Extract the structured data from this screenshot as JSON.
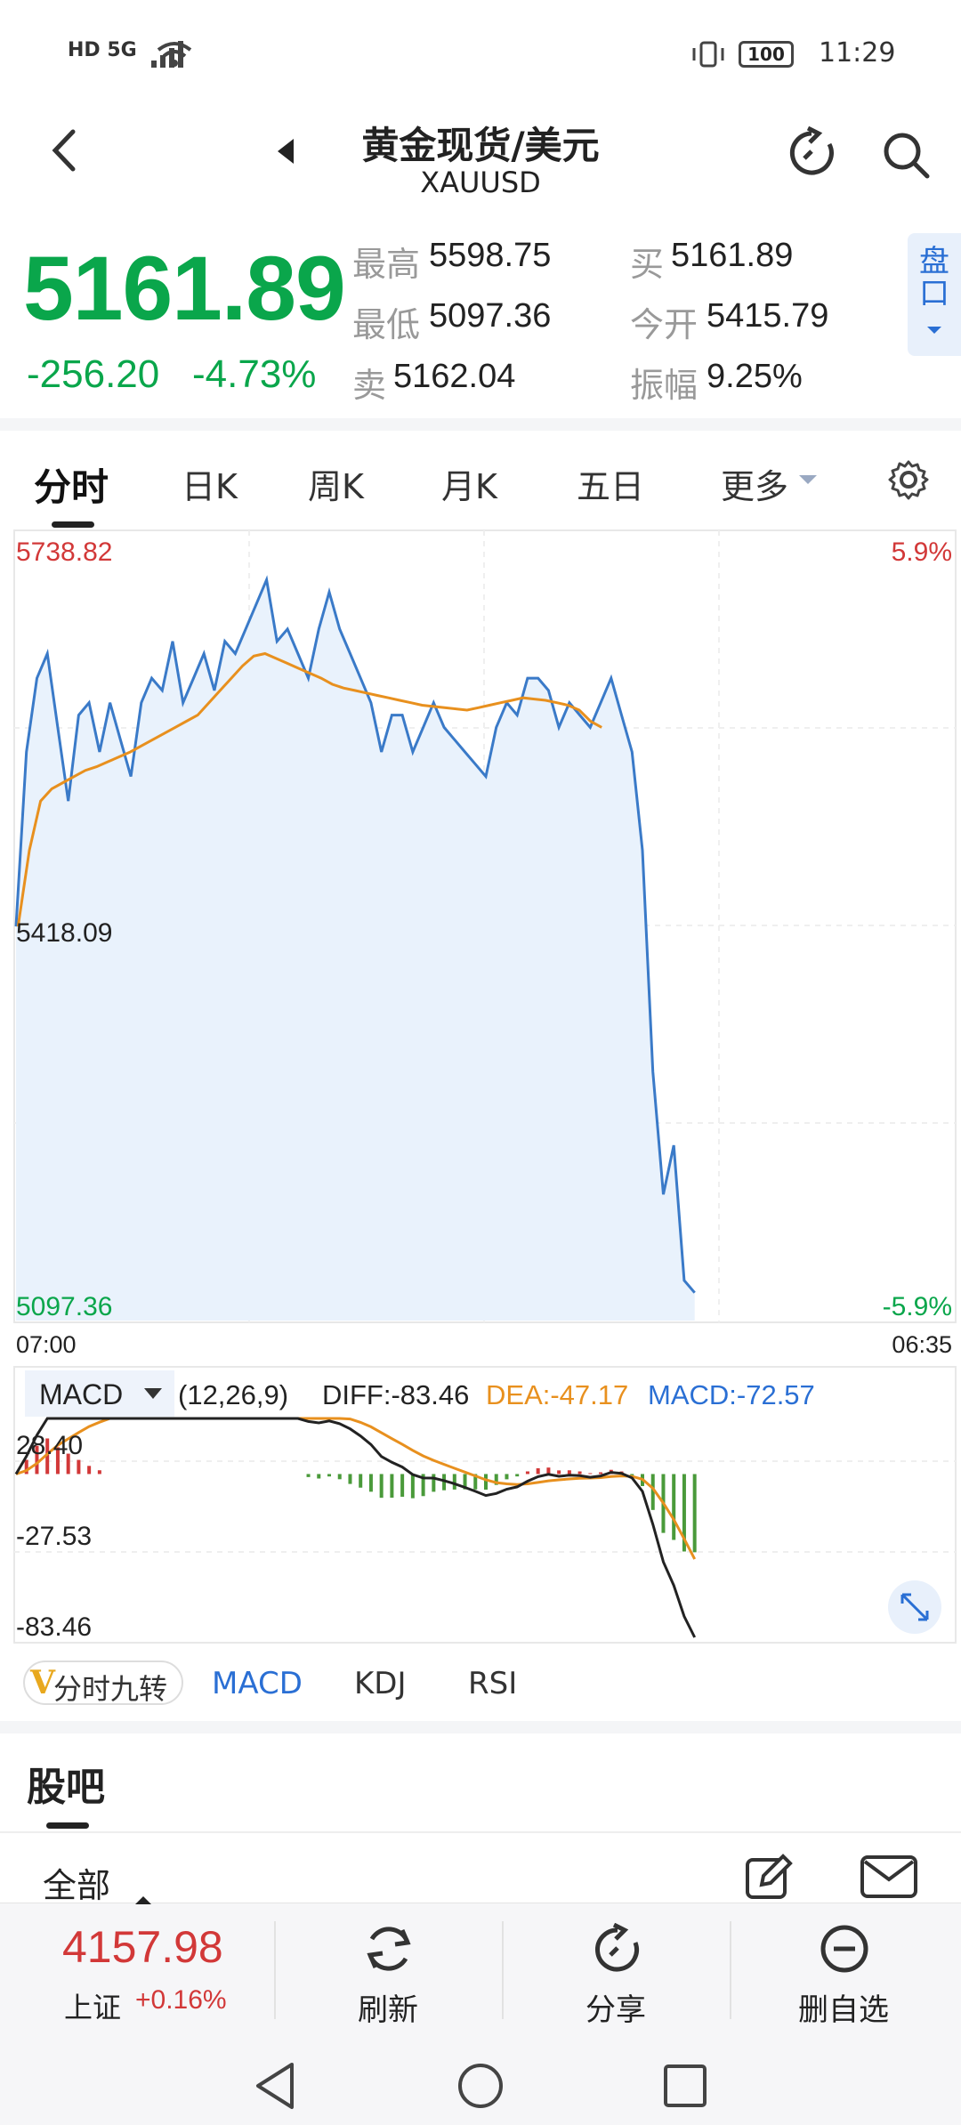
{
  "status_bar": {
    "left": "HD 5G",
    "battery": "100",
    "time": "11:29"
  },
  "header": {
    "title": "黄金现货/美元",
    "subtitle": "XAUUSD"
  },
  "quote": {
    "price": "5161.89",
    "change": "-256.20",
    "change_pct": "-4.73%",
    "high_label": "最高",
    "high": "5598.75",
    "low_label": "最低",
    "low": "5097.36",
    "sell_label": "卖",
    "sell": "5162.04",
    "buy_label": "买",
    "buy": "5161.89",
    "open_label": "今开",
    "open": "5415.79",
    "amp_label": "振幅",
    "amp": "9.25%",
    "pankou": "盘口"
  },
  "tabs": [
    "分时",
    "日K",
    "周K",
    "月K",
    "五日",
    "更多"
  ],
  "chart": {
    "y_top": "5738.82",
    "y_mid": "5418.09",
    "y_bottom": "5097.36",
    "pct_top": "5.9%",
    "pct_bottom": "-5.9%",
    "x_start": "07:00",
    "x_end": "06:35"
  },
  "macd": {
    "name": "MACD",
    "params": "(12,26,9)",
    "diff": "DIFF:-83.46",
    "dea": "DEA:-47.17",
    "macd": "MACD:-72.57",
    "y_top": "28.40",
    "y_mid": "-27.53",
    "y_bottom": "-83.46"
  },
  "indicator_tabs": {
    "special": "分时九转",
    "items": [
      "MACD",
      "KDJ",
      "RSI"
    ]
  },
  "guba": {
    "title": "股吧",
    "filter": "全部"
  },
  "bottom_bar": {
    "index_value": "4157.98",
    "index_name": "上证",
    "index_change": "+0.16%",
    "refresh": "刷新",
    "share": "分享",
    "remove": "删自选"
  },
  "colors": {
    "green": "#0aa64b",
    "red": "#d23838",
    "blue": "#2a6fd4",
    "orange": "#e8901e"
  },
  "chart_data": {
    "type": "line",
    "x_range": [
      "07:00",
      "06:35"
    ],
    "ylim": [
      5097.36,
      5738.82
    ],
    "series": [
      {
        "values": [
          5418,
          5560,
          5620,
          5640,
          5580,
          5520,
          5590,
          5600,
          5560,
          5600,
          5570,
          5540,
          5600,
          5620,
          5610,
          5650,
          5600,
          5620,
          5640,
          5610,
          5650,
          5640,
          5660,
          5680,
          5700,
          5650,
          5660,
          5640,
          5620,
          5660,
          5690,
          5660,
          5640,
          5620,
          5600,
          5560,
          5590,
          5590,
          5560,
          5580,
          5600,
          5580,
          5570,
          5560,
          5550,
          5540,
          5580,
          5600,
          5590,
          5620,
          5620,
          5610,
          5580,
          5600,
          5590,
          5580,
          5600,
          5620,
          5590,
          5560,
          5480,
          5300,
          5200,
          5240,
          5130,
          5120
        ]
      },
      {
        "values": [
          5418,
          5480,
          5520,
          5530,
          5535,
          5540,
          5545,
          5548,
          5552,
          5556,
          5560,
          5565,
          5570,
          5575,
          5580,
          5585,
          5590,
          5600,
          5610,
          5620,
          5630,
          5638,
          5640,
          5636,
          5632,
          5628,
          5624,
          5620,
          5615,
          5612,
          5610,
          5608,
          5606,
          5604,
          5602,
          5600,
          5598,
          5597,
          5596,
          5595,
          5594,
          5596,
          5598,
          5600,
          5602,
          5604,
          5603,
          5602,
          5600,
          5598,
          5594,
          5585,
          5580
        ]
      }
    ]
  }
}
